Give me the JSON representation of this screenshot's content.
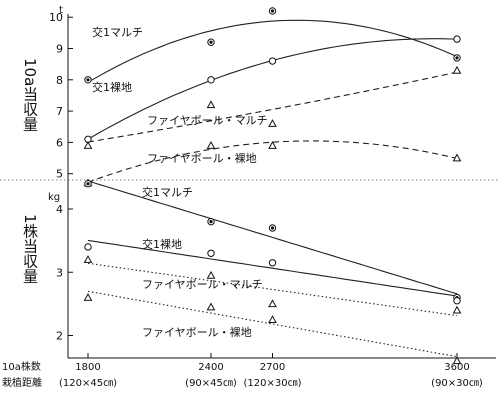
{
  "chart_data": [
    {
      "type": "line",
      "ylabel": "10a当収量",
      "y_unit": "t",
      "ylim": [
        4.5,
        10
      ],
      "yticks": [
        "10",
        "9",
        "8",
        "7",
        "6",
        "5"
      ],
      "x": [
        1800,
        2400,
        2700,
        3600
      ],
      "series": [
        {
          "name": "交1マルチ",
          "marker": "circle-filled",
          "style": "solid",
          "values": [
            8.0,
            9.2,
            10.2,
            8.7
          ]
        },
        {
          "name": "交1裸地",
          "marker": "circle-open",
          "style": "solid",
          "values": [
            6.1,
            8.0,
            8.6,
            9.3
          ]
        },
        {
          "name": "ファイヤボール・マルチ",
          "marker": "triangle-open",
          "style": "dashed",
          "values": [
            5.9,
            7.2,
            6.6,
            8.3
          ]
        },
        {
          "name": "ファイヤボール・裸地",
          "marker": "triangle-open",
          "style": "dashed",
          "values": [
            4.7,
            5.9,
            5.9,
            5.5
          ]
        }
      ]
    },
    {
      "type": "line",
      "ylabel": "1株当収量",
      "y_unit": "kg",
      "ylim": [
        1.8,
        4.6
      ],
      "yticks": [
        "4",
        "3",
        "2"
      ],
      "x": [
        1800,
        2400,
        2700,
        3600
      ],
      "series": [
        {
          "name": "交1マルチ",
          "marker": "circle-filled",
          "style": "solid",
          "values": [
            4.4,
            3.8,
            3.7,
            2.6
          ]
        },
        {
          "name": "交1裸地",
          "marker": "circle-open",
          "style": "solid",
          "values": [
            3.4,
            3.3,
            3.15,
            2.55
          ]
        },
        {
          "name": "ファイヤボール・マルチ",
          "marker": "triangle-open",
          "style": "dotted",
          "values": [
            3.2,
            2.95,
            2.5,
            2.4
          ]
        },
        {
          "name": "ファイヤボール・裸地",
          "marker": "triangle-open",
          "style": "dotted",
          "values": [
            2.6,
            2.45,
            2.25,
            1.6
          ]
        }
      ]
    }
  ],
  "x_axis": {
    "row_labels": [
      "10a株数",
      "栽植距離"
    ],
    "ticks": [
      {
        "value": 1800,
        "label": "1800",
        "spacing": "(120×45㎝)"
      },
      {
        "value": 2400,
        "label": "2400",
        "spacing": "(90×45㎝)"
      },
      {
        "value": 2700,
        "label": "2700",
        "spacing": "(120×30㎝)"
      },
      {
        "value": 3600,
        "label": "3600",
        "spacing": "(90×30㎝)"
      }
    ]
  }
}
